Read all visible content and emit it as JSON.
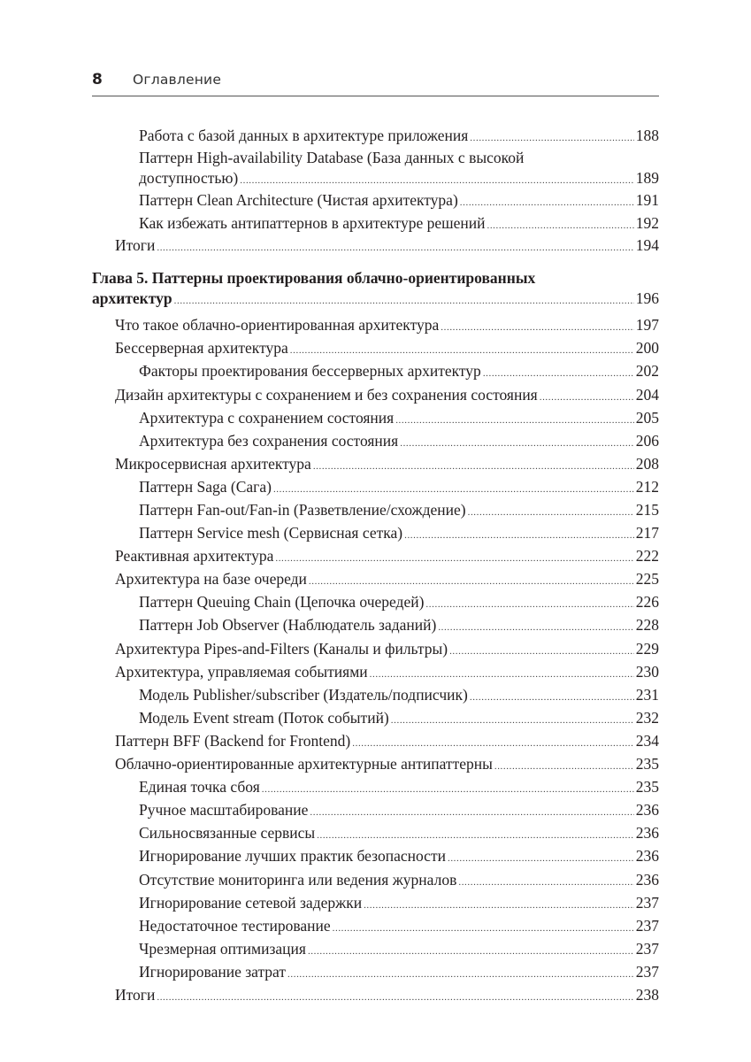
{
  "header": {
    "page_number": "8",
    "title": "Оглавление"
  },
  "entries": [
    {
      "level": 2,
      "lines": [
        "Работа с базой данных в архитектуре приложения"
      ],
      "page": "188"
    },
    {
      "level": 2,
      "lines": [
        "Паттерн High-availability Database (База данных с высокой",
        "доступностью)"
      ],
      "page": "189"
    },
    {
      "level": 2,
      "lines": [
        "Паттерн Clean Architecture (Чистая архитектура)"
      ],
      "page": "191"
    },
    {
      "level": 2,
      "lines": [
        "Как избежать антипаттернов в архитектуре решений"
      ],
      "page": "192"
    },
    {
      "level": 1,
      "lines": [
        "Итоги"
      ],
      "page": "194"
    },
    {
      "level": 0,
      "lines": [
        "Глава 5. Паттерны проектирования облачно-ориентированных",
        "архитектур"
      ],
      "page": "196"
    },
    {
      "level": 1,
      "lines": [
        "Что такое облачно-ориентированная архитектура"
      ],
      "page": "197"
    },
    {
      "level": 1,
      "lines": [
        "Бессерверная архитектура"
      ],
      "page": "200"
    },
    {
      "level": 2,
      "lines": [
        "Факторы проектирования бессерверных архитектур"
      ],
      "page": "202"
    },
    {
      "level": 1,
      "lines": [
        "Дизайн архитектуры с сохранением и без сохранения состояния"
      ],
      "page": "204"
    },
    {
      "level": 2,
      "lines": [
        "Архитектура с сохранением состояния"
      ],
      "page": "205"
    },
    {
      "level": 2,
      "lines": [
        "Архитектура без сохранения состояния"
      ],
      "page": "206"
    },
    {
      "level": 1,
      "lines": [
        "Микросервисная архитектура"
      ],
      "page": "208"
    },
    {
      "level": 2,
      "lines": [
        "Паттерн Saga (Сага)"
      ],
      "page": "212"
    },
    {
      "level": 2,
      "lines": [
        "Паттерн Fan-out/Fan-in (Разветвление/схождение)"
      ],
      "page": "215"
    },
    {
      "level": 2,
      "lines": [
        "Паттерн Service mesh (Сервисная сетка)"
      ],
      "page": "217"
    },
    {
      "level": 1,
      "lines": [
        "Реактивная архитектура"
      ],
      "page": "222"
    },
    {
      "level": 1,
      "lines": [
        "Архитектура на базе очереди"
      ],
      "page": "225"
    },
    {
      "level": 2,
      "lines": [
        "Паттерн Queuing Chain (Цепочка очередей)"
      ],
      "page": "226"
    },
    {
      "level": 2,
      "lines": [
        "Паттерн Job Observer (Наблюдатель заданий)"
      ],
      "page": "228"
    },
    {
      "level": 1,
      "lines": [
        "Архитектура Pipes-and-Filters (Каналы и фильтры)"
      ],
      "page": "229"
    },
    {
      "level": 1,
      "lines": [
        "Архитектура, управляемая событиями"
      ],
      "page": "230"
    },
    {
      "level": 2,
      "lines": [
        "Модель Publisher/subscriber (Издатель/подписчик)"
      ],
      "page": "231"
    },
    {
      "level": 2,
      "lines": [
        "Модель Event stream (Поток событий)"
      ],
      "page": "232"
    },
    {
      "level": 1,
      "lines": [
        "Паттерн BFF (Backend for Frontend)"
      ],
      "page": "234"
    },
    {
      "level": 1,
      "lines": [
        "Облачно-ориентированные архитектурные антипаттерны"
      ],
      "page": "235"
    },
    {
      "level": 2,
      "lines": [
        "Единая точка сбоя"
      ],
      "page": "235"
    },
    {
      "level": 2,
      "lines": [
        "Ручное масштабирование"
      ],
      "page": "236"
    },
    {
      "level": 2,
      "lines": [
        "Сильносвязанные сервисы"
      ],
      "page": "236"
    },
    {
      "level": 2,
      "lines": [
        "Игнорирование лучших практик безопасности"
      ],
      "page": "236"
    },
    {
      "level": 2,
      "lines": [
        "Отсутствие мониторинга или ведения журналов"
      ],
      "page": "236"
    },
    {
      "level": 2,
      "lines": [
        "Игнорирование сетевой задержки"
      ],
      "page": "237"
    },
    {
      "level": 2,
      "lines": [
        "Недостаточное тестирование"
      ],
      "page": "237"
    },
    {
      "level": 2,
      "lines": [
        "Чрезмерная оптимизация"
      ],
      "page": "237"
    },
    {
      "level": 2,
      "lines": [
        "Игнорирование затрат"
      ],
      "page": "237"
    },
    {
      "level": 1,
      "lines": [
        "Итоги"
      ],
      "page": "238"
    }
  ]
}
